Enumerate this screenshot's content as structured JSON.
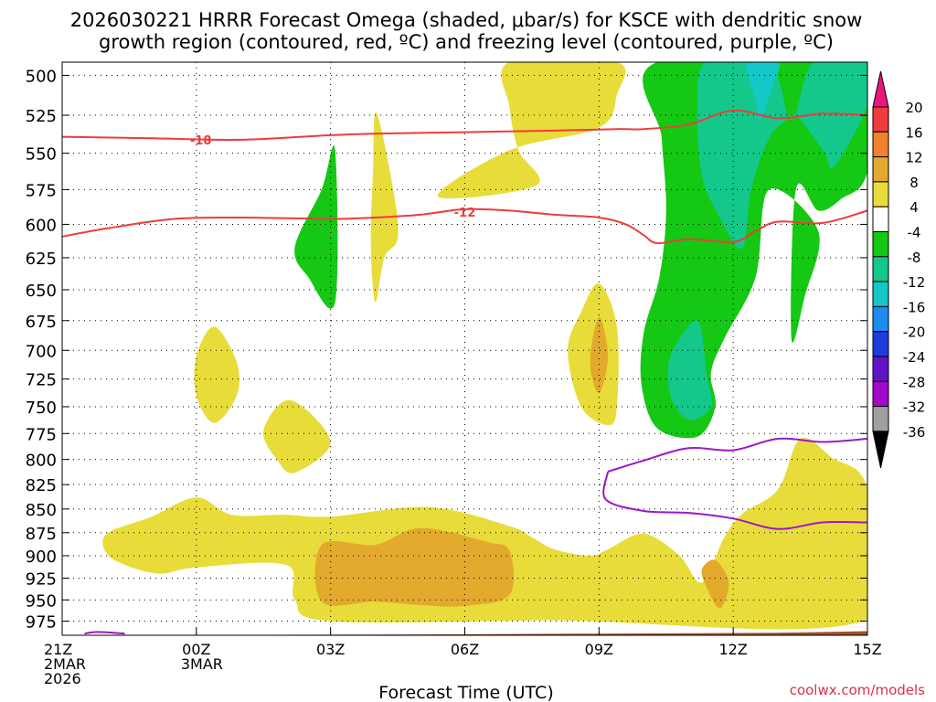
{
  "chart_data": {
    "type": "heatmap",
    "title": [
      "2026030221 HRRR Forecast Omega (shaded, μbar/s) for KSCE with dendritic snow",
      "growth region (contoured, red, ºC) and freezing level (contoured, purple, ºC)"
    ],
    "xlabel": "Forecast Time (UTC)",
    "credit": "coolwx.com/models",
    "xlim": [
      0,
      18
    ],
    "x_ticks": [
      {
        "x": 0,
        "lines": [
          "21Z",
          "2MAR",
          "2026"
        ]
      },
      {
        "x": 3,
        "lines": [
          "00Z",
          "3MAR"
        ]
      },
      {
        "x": 6,
        "lines": [
          "03Z"
        ]
      },
      {
        "x": 9,
        "lines": [
          "06Z"
        ]
      },
      {
        "x": 12,
        "lines": [
          "09Z"
        ]
      },
      {
        "x": 15,
        "lines": [
          "12Z"
        ]
      },
      {
        "x": 18,
        "lines": [
          "15Z"
        ]
      }
    ],
    "y_ticks": [
      500,
      525,
      550,
      575,
      600,
      625,
      650,
      675,
      700,
      725,
      750,
      775,
      800,
      825,
      850,
      875,
      900,
      925,
      950,
      975
    ],
    "y_log_pressure": true,
    "ylim": [
      492,
      992
    ],
    "grid": true,
    "colorbar": {
      "labels": [
        "20",
        "16",
        "12",
        "8",
        "4",
        "-4",
        "-8",
        "-12",
        "-16",
        "-20",
        "-24",
        "-28",
        "-32",
        "-36"
      ],
      "colors": [
        "#e8177e",
        "#f03c3c",
        "#f0822d",
        "#e3a92d",
        "#e8dc3a",
        "#ffffff",
        "#14c814",
        "#14c88c",
        "#14c8c8",
        "#1e8cf0",
        "#1e3cdc",
        "#6414c8",
        "#a00ac8",
        "#a0a0a0",
        "#000000"
      ]
    },
    "shaded_omega": [
      {
        "value": 6,
        "color": "#e8dc3a",
        "points": [
          [
            1,
            876
          ],
          [
            2,
            858
          ],
          [
            3,
            838
          ],
          [
            3.8,
            856
          ],
          [
            5,
            856
          ],
          [
            6,
            858
          ],
          [
            8.2,
            848
          ],
          [
            10,
            868
          ],
          [
            10.5,
            880
          ],
          [
            11,
            893
          ],
          [
            11.8,
            900
          ],
          [
            12.2,
            893
          ],
          [
            13,
            876
          ],
          [
            13.8,
            900
          ],
          [
            14.3,
            930
          ],
          [
            14.8,
            880
          ],
          [
            15.2,
            855
          ],
          [
            16,
            830
          ],
          [
            16.5,
            780
          ],
          [
            17.2,
            798
          ],
          [
            18,
            830
          ],
          [
            18,
            973
          ],
          [
            11,
            974
          ],
          [
            6,
            975
          ],
          [
            5.2,
            950
          ],
          [
            5,
            910
          ],
          [
            3,
            913
          ],
          [
            2.2,
            920
          ],
          [
            1.5,
            912
          ],
          [
            1,
            898
          ]
        ]
      },
      {
        "value": 10,
        "color": "#e3a92d",
        "points": [
          [
            5.8,
            888
          ],
          [
            7,
            888
          ],
          [
            8,
            870
          ],
          [
            9.5,
            885
          ],
          [
            10,
            895
          ],
          [
            10,
            944
          ],
          [
            9,
            957
          ],
          [
            8,
            956
          ],
          [
            7,
            952
          ],
          [
            5.8,
            952
          ]
        ]
      },
      {
        "value": 10,
        "color": "#e3a92d",
        "points": [
          [
            14.6,
            905
          ],
          [
            14.9,
            930
          ],
          [
            14.7,
            960
          ],
          [
            14.4,
            935
          ],
          [
            14.3,
            915
          ]
        ]
      },
      {
        "value": 6,
        "color": "#e8dc3a",
        "points": [
          [
            8.4,
            580
          ],
          [
            10,
            548
          ],
          [
            12,
            533
          ],
          [
            12.4,
            512
          ],
          [
            12.4,
            492
          ],
          [
            10,
            492
          ],
          [
            10,
            520
          ],
          [
            10.2,
            548
          ],
          [
            10.6,
            572
          ]
        ]
      },
      {
        "value": 6,
        "color": "#e8dc3a",
        "points": [
          [
            7.02,
            523
          ],
          [
            7.4,
            575
          ],
          [
            7.5,
            610
          ],
          [
            7.2,
            625
          ],
          [
            7,
            660
          ],
          [
            6.9,
            615
          ],
          [
            6.95,
            560
          ]
        ]
      },
      {
        "value": 6,
        "color": "#e8dc3a",
        "points": [
          [
            12,
            645
          ],
          [
            12.4,
            680
          ],
          [
            12.4,
            750
          ],
          [
            12.2,
            767
          ],
          [
            11.6,
            750
          ],
          [
            11.3,
            700
          ],
          [
            11.6,
            668
          ]
        ]
      },
      {
        "value": 10,
        "color": "#e3a92d",
        "points": [
          [
            12,
            672
          ],
          [
            12.2,
            705
          ],
          [
            12,
            738
          ],
          [
            11.8,
            710
          ]
        ]
      },
      {
        "value": 6,
        "color": "#e8dc3a",
        "points": [
          [
            3.4,
            680
          ],
          [
            3.9,
            710
          ],
          [
            3.9,
            740
          ],
          [
            3.4,
            765
          ],
          [
            3,
            740
          ],
          [
            3,
            705
          ]
        ]
      },
      {
        "value": 6,
        "color": "#e8dc3a",
        "points": [
          [
            5.1,
            744
          ],
          [
            6,
            783
          ],
          [
            5.2,
            813
          ],
          [
            4.8,
            800
          ],
          [
            4.5,
            772
          ]
        ]
      },
      {
        "value": -6,
        "color": "#14c814",
        "points": [
          [
            13.3,
            492
          ],
          [
            18,
            492
          ],
          [
            18,
            562
          ],
          [
            17.4,
            582
          ],
          [
            16.9,
            590
          ],
          [
            16.4,
            575
          ],
          [
            16.3,
            690
          ],
          [
            16.6,
            655
          ],
          [
            16.9,
            605
          ],
          [
            15.8,
            575
          ],
          [
            15.5,
            640
          ],
          [
            14.8,
            690
          ],
          [
            14.5,
            720
          ],
          [
            14.6,
            750
          ],
          [
            14.2,
            778
          ],
          [
            13.3,
            770
          ],
          [
            12.95,
            730
          ],
          [
            13.0,
            685
          ],
          [
            13.35,
            640
          ],
          [
            13.5,
            590
          ],
          [
            13.4,
            540
          ]
        ]
      },
      {
        "value": -10,
        "color": "#14c88c",
        "points": [
          [
            14.4,
            492
          ],
          [
            15.8,
            492
          ],
          [
            16.3,
            528
          ],
          [
            16.8,
            492
          ],
          [
            18,
            492
          ],
          [
            18,
            518
          ],
          [
            17.5,
            548
          ],
          [
            17.2,
            560
          ],
          [
            17,
            548
          ],
          [
            16.4,
            525
          ],
          [
            16.2,
            528
          ],
          [
            15.8,
            540
          ],
          [
            15.4,
            575
          ],
          [
            15.2,
            618
          ],
          [
            14.7,
            595
          ],
          [
            14.3,
            565
          ],
          [
            14.2,
            520
          ]
        ]
      },
      {
        "value": -10,
        "color": "#14c88c",
        "points": [
          [
            14.2,
            675
          ],
          [
            14.4,
            720
          ],
          [
            14.5,
            750
          ],
          [
            14,
            762
          ],
          [
            13.6,
            740
          ],
          [
            13.6,
            705
          ]
        ]
      },
      {
        "value": -14,
        "color": "#14c8c8",
        "points": [
          [
            15.3,
            492
          ],
          [
            16,
            492
          ],
          [
            15.9,
            505
          ],
          [
            15.6,
            528
          ],
          [
            15.5,
            515
          ]
        ]
      },
      {
        "value": -6,
        "color": "#14c814",
        "points": [
          [
            6.1,
            548
          ],
          [
            6.1,
            660
          ],
          [
            5.5,
            640
          ],
          [
            5.2,
            617
          ],
          [
            5.8,
            575
          ]
        ]
      }
    ],
    "red_contours": [
      {
        "label": "-18",
        "label_x": 3.1,
        "label_y": 541,
        "points": [
          [
            0,
            539
          ],
          [
            2,
            540
          ],
          [
            4,
            541
          ],
          [
            6,
            538
          ],
          [
            7,
            537
          ],
          [
            9,
            536
          ],
          [
            11,
            535
          ],
          [
            12.4,
            534
          ],
          [
            13,
            534
          ],
          [
            14,
            531
          ],
          [
            15,
            522
          ],
          [
            16,
            527
          ],
          [
            17,
            524
          ],
          [
            18,
            525
          ]
        ]
      },
      {
        "label": "-12",
        "label_x": 9,
        "label_y": 591,
        "points": [
          [
            0,
            609
          ],
          [
            1,
            603
          ],
          [
            2.5,
            596
          ],
          [
            4,
            595
          ],
          [
            6,
            596
          ],
          [
            7,
            595
          ],
          [
            8,
            593
          ],
          [
            9,
            589
          ],
          [
            10,
            590
          ],
          [
            11,
            593
          ],
          [
            12,
            595
          ],
          [
            12.6,
            600
          ],
          [
            13,
            608
          ],
          [
            13.3,
            614
          ],
          [
            14,
            611
          ],
          [
            15,
            613
          ],
          [
            15.5,
            605
          ],
          [
            16,
            598
          ],
          [
            17,
            599
          ],
          [
            18,
            590
          ]
        ]
      }
    ],
    "purple_contours": [
      {
        "label": "",
        "points": [
          [
            12.2,
            812
          ],
          [
            13,
            801
          ],
          [
            14,
            789
          ],
          [
            15,
            791
          ],
          [
            16,
            780
          ],
          [
            17,
            783
          ],
          [
            18,
            780
          ]
        ]
      },
      {
        "label": "",
        "points": [
          [
            12.2,
            812
          ],
          [
            12.15,
            840
          ],
          [
            13,
            852
          ],
          [
            14,
            854
          ],
          [
            15,
            860
          ],
          [
            16,
            871
          ],
          [
            17,
            864
          ],
          [
            18,
            864
          ]
        ]
      },
      {
        "label": "",
        "points": [
          [
            0.5,
            990
          ],
          [
            0.8,
            988
          ],
          [
            1.4,
            990
          ]
        ]
      }
    ],
    "terrain": {
      "color": "#a0522d",
      "points": [
        [
          0,
          992
        ],
        [
          8,
          991
        ],
        [
          12,
          990
        ],
        [
          16,
          989
        ],
        [
          18,
          987
        ]
      ]
    }
  }
}
